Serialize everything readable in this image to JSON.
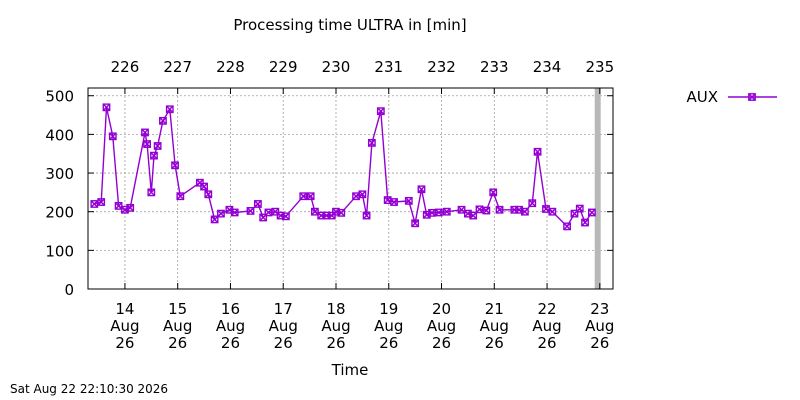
{
  "chart_data": {
    "type": "line",
    "title": "Processing time ULTRA in [min]",
    "xlabel": "Time",
    "ylabel": "",
    "ylim": [
      0,
      520
    ],
    "yticks": [
      0,
      100,
      200,
      300,
      400,
      500
    ],
    "xlim": [
      13.3,
      23.25
    ],
    "grid": true,
    "legend_position": "top-right outside",
    "bottom_ticks": [
      {
        "x": 14,
        "lines": [
          "14",
          "Aug",
          "26"
        ]
      },
      {
        "x": 15,
        "lines": [
          "15",
          "Aug",
          "26"
        ]
      },
      {
        "x": 16,
        "lines": [
          "16",
          "Aug",
          "26"
        ]
      },
      {
        "x": 17,
        "lines": [
          "17",
          "Aug",
          "26"
        ]
      },
      {
        "x": 18,
        "lines": [
          "18",
          "Aug",
          "26"
        ]
      },
      {
        "x": 19,
        "lines": [
          "19",
          "Aug",
          "26"
        ]
      },
      {
        "x": 20,
        "lines": [
          "20",
          "Aug",
          "26"
        ]
      },
      {
        "x": 21,
        "lines": [
          "21",
          "Aug",
          "26"
        ]
      },
      {
        "x": 22,
        "lines": [
          "22",
          "Aug",
          "26"
        ]
      },
      {
        "x": 23,
        "lines": [
          "23",
          "Aug",
          "26"
        ]
      }
    ],
    "top_ticks": [
      {
        "x": 14.0,
        "label": "226"
      },
      {
        "x": 15.0,
        "label": "227"
      },
      {
        "x": 16.0,
        "label": "228"
      },
      {
        "x": 17.0,
        "label": "229"
      },
      {
        "x": 18.0,
        "label": "230"
      },
      {
        "x": 19.0,
        "label": "231"
      },
      {
        "x": 20.0,
        "label": "232"
      },
      {
        "x": 21.0,
        "label": "233"
      },
      {
        "x": 22.0,
        "label": "234"
      },
      {
        "x": 23.0,
        "label": "235"
      }
    ],
    "vertical_marker_x": 22.96,
    "series": [
      {
        "name": "AUX",
        "color": "#9400d3",
        "marker": "x-square",
        "x": [
          13.42,
          13.55,
          13.65,
          13.77,
          13.88,
          14.0,
          14.1,
          14.38,
          14.42,
          14.5,
          14.55,
          14.62,
          14.72,
          14.85,
          14.95,
          15.05,
          15.42,
          15.5,
          15.58,
          15.7,
          15.82,
          15.98,
          16.08,
          16.38,
          16.52,
          16.62,
          16.72,
          16.85,
          16.95,
          17.05,
          17.38,
          17.52,
          17.6,
          17.72,
          17.82,
          17.92,
          18.0,
          18.1,
          18.38,
          18.5,
          18.58,
          18.68,
          18.85,
          18.98,
          19.1,
          19.38,
          19.5,
          19.62,
          19.72,
          19.82,
          19.95,
          20.1,
          20.38,
          20.5,
          20.6,
          20.72,
          20.85,
          20.98,
          21.1,
          21.38,
          21.47,
          21.58,
          21.72,
          21.82,
          21.98,
          22.1,
          22.38,
          22.52,
          22.62,
          22.72,
          22.85
        ],
        "y": [
          220,
          225,
          470,
          395,
          215,
          205,
          210,
          405,
          375,
          250,
          345,
          370,
          435,
          465,
          320,
          240,
          275,
          265,
          245,
          180,
          195,
          205,
          198,
          202,
          220,
          185,
          198,
          200,
          190,
          188,
          240,
          240,
          200,
          190,
          190,
          190,
          200,
          197,
          240,
          245,
          190,
          378,
          460,
          230,
          225,
          228,
          170,
          258,
          192,
          197,
          198,
          200,
          205,
          195,
          190,
          206,
          203,
          250,
          205,
          205,
          205,
          200,
          222,
          355,
          207,
          200,
          162,
          195,
          208,
          172,
          198
        ]
      }
    ]
  },
  "footer": {
    "timestamp": "Sat Aug 22 22:10:30 2026"
  }
}
